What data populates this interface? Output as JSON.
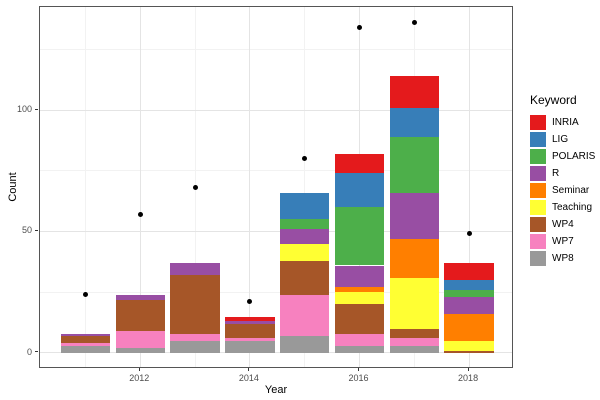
{
  "chart_data": {
    "type": "bar",
    "stacked": true,
    "title": "",
    "xlabel": "Year",
    "ylabel": "Count",
    "categories": [
      2011,
      2012,
      2013,
      2014,
      2015,
      2016,
      2017,
      2018
    ],
    "series": [
      {
        "name": "INRIA",
        "color": "#E41A1C",
        "values": [
          0,
          0,
          0,
          2,
          0,
          8,
          13,
          7
        ]
      },
      {
        "name": "LIG",
        "color": "#377EB8",
        "values": [
          0,
          0,
          0,
          0,
          11,
          14,
          12,
          4
        ]
      },
      {
        "name": "POLARIS",
        "color": "#4DAF4A",
        "values": [
          0,
          0,
          0,
          0,
          4,
          24,
          23,
          3
        ]
      },
      {
        "name": "R",
        "color": "#984EA3",
        "values": [
          1,
          2,
          5,
          1,
          6,
          9,
          19,
          7
        ]
      },
      {
        "name": "Seminar",
        "color": "#FF7F00",
        "values": [
          0,
          0,
          0,
          0,
          0,
          2,
          16,
          11
        ]
      },
      {
        "name": "Teaching",
        "color": "#FFFF33",
        "values": [
          0,
          0,
          0,
          0,
          7,
          5,
          21,
          4
        ]
      },
      {
        "name": "WP4",
        "color": "#A65628",
        "values": [
          3,
          13,
          24,
          6,
          14,
          12,
          4,
          1
        ]
      },
      {
        "name": "WP7",
        "color": "#F781BF",
        "values": [
          1,
          7,
          3,
          1,
          17,
          5,
          3,
          0
        ]
      },
      {
        "name": "WP8",
        "color": "#999999",
        "values": [
          3,
          2,
          5,
          5,
          7,
          3,
          3,
          0
        ]
      }
    ],
    "points_overlay": {
      "name": "yearly-total-points",
      "color": "#000000",
      "values": [
        24,
        57,
        68,
        21,
        80,
        134,
        136,
        49
      ]
    },
    "legend": {
      "title": "Keyword",
      "position": "right"
    },
    "axes": {
      "x_major_ticks": [
        2012,
        2014,
        2016,
        2018
      ],
      "x_minor_ticks": [
        2011,
        2013,
        2015,
        2017
      ],
      "y_major_ticks": [
        0,
        50,
        100
      ],
      "y_minor_ticks": [
        25,
        75,
        125
      ],
      "x_domain": [
        2010.17,
        2018.82
      ],
      "y_domain": [
        -6.6,
        142.4
      ],
      "bar_width_years": 0.9,
      "grid": true
    }
  }
}
